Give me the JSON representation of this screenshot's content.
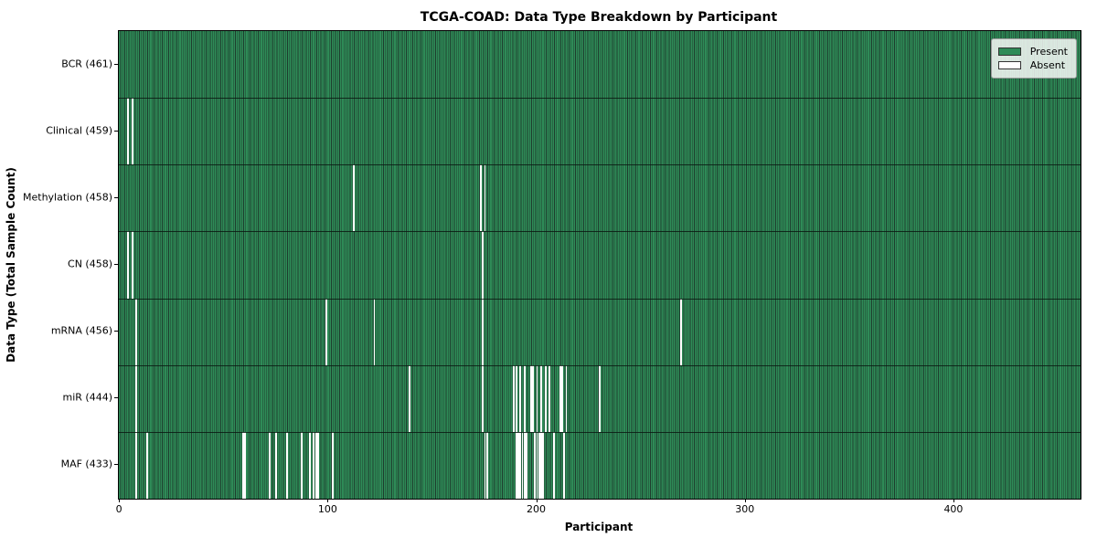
{
  "figure": {
    "title": "TCGA-COAD: Data Type Breakdown by Participant",
    "xlabel": "Participant",
    "ylabel": "Data Type (Total Sample Count)"
  },
  "legend": {
    "present": "Present",
    "absent": "Absent"
  },
  "colors": {
    "present": "#2E8B57",
    "cell_edge": "#1e3d2e",
    "absent": "#ffffff"
  },
  "chart_data": {
    "type": "heatmap",
    "title": "TCGA-COAD: Data Type Breakdown by Participant",
    "xlabel": "Participant",
    "ylabel": "Data Type (Total Sample Count)",
    "legend_entries": [
      "Present",
      "Absent"
    ],
    "n_participants": 461,
    "x_ticks": [
      0,
      100,
      200,
      300,
      400
    ],
    "x_range": [
      0,
      460
    ],
    "values_meaning": "per row: participant indices where data is Absent (white); all others Present (green)",
    "rows": [
      {
        "label": "BCR (461)",
        "data_type": "BCR",
        "present_count": 461,
        "absent_participants": []
      },
      {
        "label": "Clinical (459)",
        "data_type": "Clinical",
        "present_count": 459,
        "absent_participants": [
          4,
          6
        ]
      },
      {
        "label": "Methylation (458)",
        "data_type": "Methylation",
        "present_count": 458,
        "absent_participants": [
          112,
          173,
          175
        ]
      },
      {
        "label": "CN (458)",
        "data_type": "CN",
        "present_count": 458,
        "absent_participants": [
          4,
          6,
          174
        ]
      },
      {
        "label": "mRNA (456)",
        "data_type": "mRNA",
        "present_count": 456,
        "absent_participants": [
          8,
          99,
          122,
          174,
          269
        ]
      },
      {
        "label": "miR (444)",
        "data_type": "miR",
        "present_count": 444,
        "absent_participants": [
          8,
          139,
          174,
          189,
          190,
          192,
          194,
          197,
          198,
          200,
          202,
          204,
          206,
          211,
          212,
          214,
          230
        ]
      },
      {
        "label": "MAF (433)",
        "data_type": "MAF",
        "present_count": 433,
        "absent_participants": [
          8,
          13,
          59,
          60,
          72,
          75,
          80,
          87,
          91,
          93,
          94,
          95,
          102,
          175,
          176,
          190,
          191,
          192,
          193,
          194,
          195,
          199,
          200,
          201,
          202,
          203,
          208,
          213
        ]
      }
    ]
  }
}
